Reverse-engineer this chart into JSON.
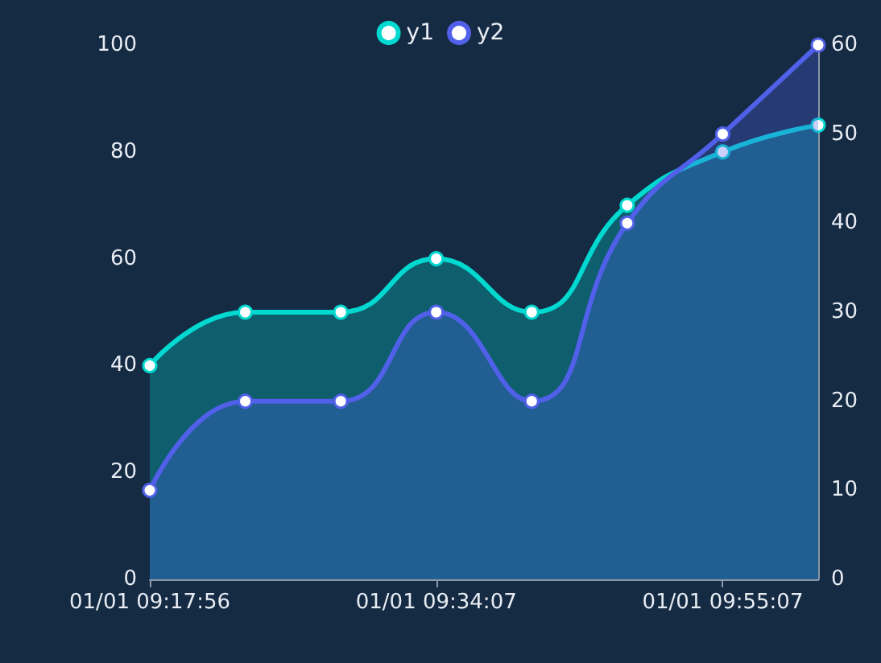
{
  "chart_data": {
    "type": "area",
    "categories": [
      "01/01 09:17:56",
      null,
      null,
      "01/01 09:34:07",
      null,
      null,
      "01/01 09:55:07",
      null
    ],
    "series": [
      {
        "name": "y1",
        "color": "#00d8d0",
        "values": [
          40,
          50,
          50,
          60,
          50,
          70,
          80,
          85
        ]
      },
      {
        "name": "y2",
        "color": "#5060e8",
        "axis": "y2",
        "values": [
          10,
          20,
          20,
          30,
          20,
          40,
          50,
          60
        ]
      }
    ],
    "ylim": [
      0,
      100
    ],
    "yticks": [
      0,
      20,
      40,
      60,
      80,
      100
    ],
    "y2lim": [
      0,
      60
    ],
    "y2ticks": [
      0,
      10,
      20,
      30,
      40,
      50,
      60
    ],
    "grid": false,
    "legend": "top",
    "marker": "circle"
  }
}
